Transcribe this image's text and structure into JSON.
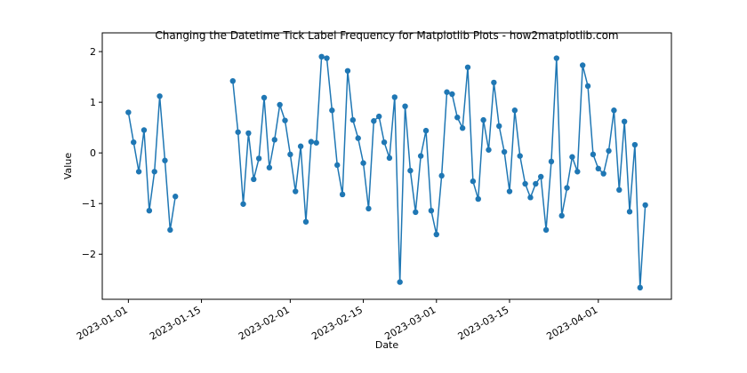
{
  "chart_data": {
    "type": "line",
    "title": "Changing the Datetime Tick Label Frequency for Matplotlib Plots - how2matplotlib.com",
    "x_label": "Date",
    "y_label": "Value",
    "x": [
      "2023-01-01",
      "2023-01-02",
      "2023-01-03",
      "2023-01-04",
      "2023-01-05",
      "2023-01-06",
      "2023-01-07",
      "2023-01-08",
      "2023-01-09",
      "2023-01-10",
      "2023-01-11",
      "2023-01-12",
      "2023-01-13",
      "2023-01-14",
      "2023-01-15",
      "2023-01-16",
      "2023-01-17",
      "2023-01-18",
      "2023-01-19",
      "2023-01-20",
      "2023-01-21",
      "2023-01-22",
      "2023-01-23",
      "2023-01-24",
      "2023-01-25",
      "2023-01-26",
      "2023-01-27",
      "2023-01-28",
      "2023-01-29",
      "2023-01-30",
      "2023-01-31",
      "2023-02-01",
      "2023-02-02",
      "2023-02-03",
      "2023-02-04",
      "2023-02-05",
      "2023-02-06",
      "2023-02-07",
      "2023-02-08",
      "2023-02-09",
      "2023-02-10",
      "2023-02-11",
      "2023-02-12",
      "2023-02-13",
      "2023-02-14",
      "2023-02-15",
      "2023-02-16",
      "2023-02-17",
      "2023-02-18",
      "2023-02-19",
      "2023-02-20",
      "2023-02-21",
      "2023-02-22",
      "2023-02-23",
      "2023-02-24",
      "2023-02-25",
      "2023-02-26",
      "2023-02-27",
      "2023-02-28",
      "2023-03-01",
      "2023-03-02",
      "2023-03-03",
      "2023-03-04",
      "2023-03-05",
      "2023-03-06",
      "2023-03-07",
      "2023-03-08",
      "2023-03-09",
      "2023-03-10",
      "2023-03-11",
      "2023-03-12",
      "2023-03-13",
      "2023-03-14",
      "2023-03-15",
      "2023-03-16",
      "2023-03-17",
      "2023-03-18",
      "2023-03-19",
      "2023-03-20",
      "2023-03-21",
      "2023-03-22",
      "2023-03-23",
      "2023-03-24",
      "2023-03-25",
      "2023-03-26",
      "2023-03-27",
      "2023-03-28",
      "2023-03-29",
      "2023-03-30",
      "2023-03-31",
      "2023-04-01",
      "2023-04-02",
      "2023-04-03",
      "2023-04-04",
      "2023-04-05",
      "2023-04-06",
      "2023-04-07",
      "2023-04-08",
      "2023-04-09",
      "2023-04-10"
    ],
    "series": [
      {
        "color": "#1f77b4",
        "marker": "o",
        "values": [
          0.8,
          0.21,
          -0.37,
          0.45,
          -1.14,
          -0.37,
          1.12,
          -0.15,
          -1.52,
          -0.86,
          null,
          null,
          null,
          null,
          null,
          null,
          null,
          null,
          null,
          null,
          1.42,
          0.41,
          -1.01,
          0.39,
          -0.52,
          -0.11,
          1.09,
          -0.29,
          0.26,
          0.95,
          0.64,
          -0.03,
          -0.76,
          0.13,
          -1.36,
          0.22,
          0.2,
          1.9,
          1.87,
          0.84,
          -0.24,
          -0.82,
          1.62,
          0.65,
          0.29,
          -0.2,
          -1.1,
          0.63,
          0.72,
          0.21,
          -0.1,
          1.1,
          -2.55,
          0.92,
          -0.35,
          -1.17,
          -0.06,
          0.44,
          -1.14,
          -1.61,
          -0.45,
          1.2,
          1.16,
          0.7,
          0.49,
          1.69,
          -0.56,
          -0.91,
          0.65,
          0.06,
          1.39,
          0.53,
          0.02,
          -0.76,
          0.84,
          -0.06,
          -0.61,
          -0.88,
          -0.61,
          -0.47,
          -1.52,
          -0.17,
          1.87,
          -1.24,
          -0.69,
          -0.08,
          -0.37,
          1.73,
          1.32,
          -0.03,
          -0.31,
          -0.41,
          0.04,
          0.84,
          -0.73,
          0.62,
          -1.16,
          0.16,
          -2.66,
          -1.03
        ]
      }
    ],
    "xlim": [
      "2022-12-27",
      "2023-04-15"
    ],
    "xticks": [
      "2023-01-01",
      "2023-01-15",
      "2023-02-01",
      "2023-02-15",
      "2023-03-01",
      "2023-03-15",
      "2023-04-01"
    ],
    "ylim": [
      -2.89,
      2.37
    ],
    "yticks": [
      {
        "value": -2,
        "label": "−2"
      },
      {
        "value": -1,
        "label": "−1"
      },
      0,
      1,
      2
    ]
  }
}
